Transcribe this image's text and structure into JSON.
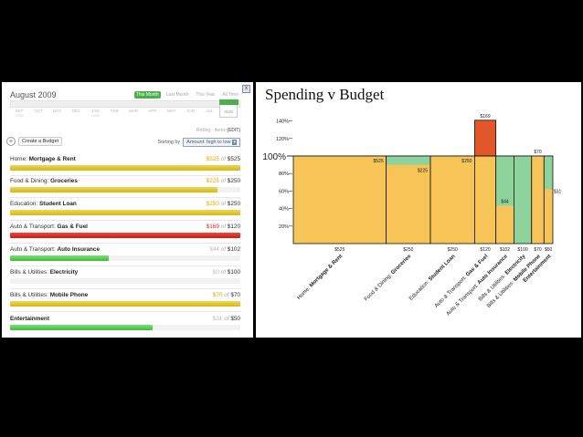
{
  "budget_panel": {
    "month_title": "August 2009",
    "close_icon": "x",
    "period_tabs": [
      {
        "label": "This Month",
        "active": true
      },
      {
        "label": "Last Month",
        "active": false
      },
      {
        "label": "This Year",
        "active": false
      },
      {
        "label": "All Time",
        "active": false
      }
    ],
    "timeline_months": [
      {
        "label": "SEP",
        "year": "2008"
      },
      {
        "label": "OCT",
        "year": ""
      },
      {
        "label": "NOV",
        "year": ""
      },
      {
        "label": "DEC",
        "year": ""
      },
      {
        "label": "JAN",
        "year": "2009"
      },
      {
        "label": "FEB",
        "year": ""
      },
      {
        "label": "MAR",
        "year": ""
      },
      {
        "label": "APR",
        "year": ""
      },
      {
        "label": "MAY",
        "year": ""
      },
      {
        "label": "JUN",
        "year": ""
      },
      {
        "label": "JUL",
        "year": ""
      },
      {
        "label": "AUG",
        "year": "",
        "selected": true
      }
    ],
    "edit_row": {
      "prefix": "Rolling · Items",
      "edit_label": "EDIT"
    },
    "create_button_label": "Create a Budget",
    "sort_label": "Sorting by",
    "sort_value": "Amount: high to low",
    "budgets": [
      {
        "prefix": "Home: ",
        "name": "Mortgage & Rent",
        "spent": "$525",
        "budget": "$525",
        "fraction": 1.0,
        "color": "yellow"
      },
      {
        "prefix": "Food & Dining: ",
        "name": "Groceries",
        "spent": "$225",
        "budget": "$250",
        "fraction": 0.9,
        "color": "yellow"
      },
      {
        "prefix": "Education: ",
        "name": "Student Loan",
        "spent": "$250",
        "budget": "$250",
        "fraction": 1.0,
        "color": "yellow"
      },
      {
        "prefix": "Auto & Transport: ",
        "name": "Gas & Fuel",
        "spent": "$169",
        "budget": "$120",
        "fraction": 1.0,
        "color": "red"
      },
      {
        "prefix": "Auto & Transport: ",
        "name": "Auto Insurance",
        "spent": "$44",
        "budget": "$102",
        "fraction": 0.43,
        "color": "green"
      },
      {
        "prefix": "Bills & Utilities: ",
        "name": "Electricity",
        "spent": "$0",
        "budget": "$100",
        "fraction": 0.0,
        "color": "green"
      },
      {
        "prefix": "Bills & Utilities: ",
        "name": "Mobile Phone",
        "spent": "$70",
        "budget": "$70",
        "fraction": 1.0,
        "color": "yellow"
      },
      {
        "prefix": "",
        "name": "Entertainment",
        "spent": "$31",
        "budget": "$50",
        "fraction": 0.62,
        "color": "green"
      }
    ]
  },
  "chart_panel": {
    "title": "Spending v Budget"
  },
  "chart_data": {
    "type": "bar",
    "title": "Spending v Budget",
    "y_ticks": [
      "140%",
      "120%",
      "100%",
      "80%",
      "60%",
      "40%",
      "20%"
    ],
    "y_tick_values": [
      140,
      120,
      100,
      80,
      60,
      40,
      20
    ],
    "ylim": [
      0,
      160
    ],
    "categories": [
      {
        "prefix": "Home: ",
        "name": "Mortgage & Rent",
        "budget": 525,
        "budget_label": "$525",
        "spent": 525,
        "spent_label": "$525"
      },
      {
        "prefix": "Food & Dining: ",
        "name": "Groceries",
        "budget": 250,
        "budget_label": "$250",
        "spent": 225,
        "spent_label": "$225"
      },
      {
        "prefix": "Education: ",
        "name": "Student Loan",
        "budget": 250,
        "budget_label": "$250",
        "spent": 250,
        "spent_label": "$250"
      },
      {
        "prefix": "Auto & Transport: ",
        "name": "Gas & Fuel",
        "budget": 120,
        "budget_label": "$120",
        "spent": 169,
        "spent_label": "$169"
      },
      {
        "prefix": "Auto & Transport: ",
        "name": "Auto Insurance",
        "budget": 102,
        "budget_label": "$102",
        "spent": 44,
        "spent_label": "$44"
      },
      {
        "prefix": "Bills & Utilities: ",
        "name": "Electricity",
        "budget": 100,
        "budget_label": "$100",
        "spent": 0,
        "spent_label": ""
      },
      {
        "prefix": "Bills & Utilities: ",
        "name": "Mobile Phone",
        "budget": 70,
        "budget_label": "$70",
        "spent": 70,
        "spent_label": "$70"
      },
      {
        "prefix": "",
        "name": "Entertainment",
        "budget": 50,
        "budget_label": "$50",
        "spent": 31,
        "spent_label": "$31"
      }
    ],
    "colors": {
      "spent": "#f6c457",
      "over": "#e2572a",
      "unspent": "#8dd39b",
      "outline": "#111111"
    }
  }
}
